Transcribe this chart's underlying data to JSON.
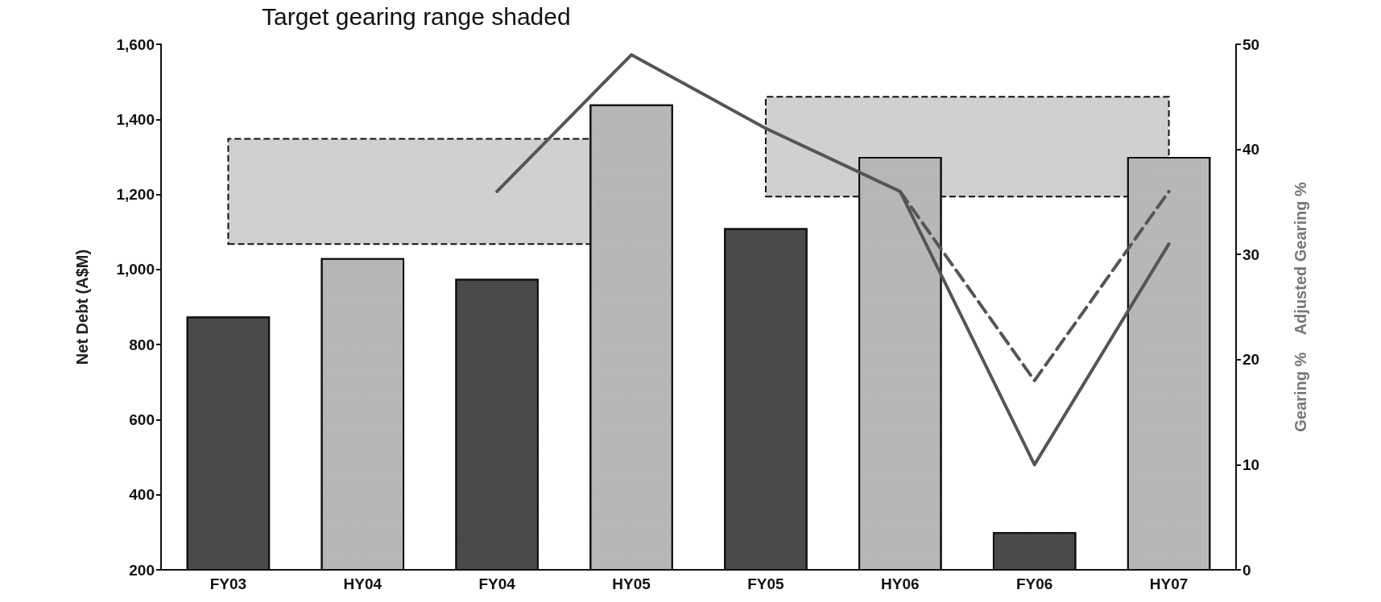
{
  "chart_data": {
    "type": "bar",
    "title": "Target gearing range shaded",
    "ylabel": "Net Debt (A$M)",
    "y2label": "Gearing %    Adjusted Gearing %",
    "categories": [
      "FY03",
      "HY04",
      "FY04",
      "HY05",
      "FY05",
      "HY06",
      "FY06",
      "HY07"
    ],
    "series": [
      {
        "colors": [
          "#4a4a4a",
          "#b8b8b8",
          "#4a4a4a",
          "#b8b8b8",
          "#4a4a4a",
          "#b8b8b8",
          "#4a4a4a",
          "#b8b8b8"
        ],
        "values": [
          875,
          1030,
          975,
          1440,
          1110,
          1300,
          300,
          1300
        ]
      },
      {
        "type": "line",
        "axis": "y2",
        "color": "#555555",
        "line_style": "solid",
        "values": [
          null,
          null,
          36,
          49,
          42,
          36,
          10,
          31
        ]
      },
      {
        "type": "line",
        "axis": "y2",
        "color": "#555555",
        "line_style": "dashed",
        "values": [
          null,
          null,
          null,
          null,
          null,
          36,
          18,
          36
        ]
      }
    ],
    "ylim": [
      200,
      1600
    ],
    "yticks": [
      {
        "value": 200,
        "label": "200"
      },
      {
        "value": 400,
        "label": "400"
      },
      {
        "value": 600,
        "label": "600"
      },
      {
        "value": 800,
        "label": "800"
      },
      {
        "value": 1000,
        "label": "1,000"
      },
      {
        "value": 1200,
        "label": "1,200"
      },
      {
        "value": 1400,
        "label": "1,400"
      },
      {
        "value": 1600,
        "label": "1,600"
      }
    ],
    "y2lim": [
      0,
      50
    ],
    "y2ticks": [
      0,
      10,
      20,
      30,
      40,
      50
    ],
    "bands": [
      {
        "axis": "y2",
        "from": 31,
        "to": 41,
        "color": "#d0d0d0"
      },
      {
        "axis": "y2",
        "from": 35.5,
        "to": 45,
        "color": "#d0d0d0"
      }
    ],
    "grid": false,
    "marker": "none"
  }
}
